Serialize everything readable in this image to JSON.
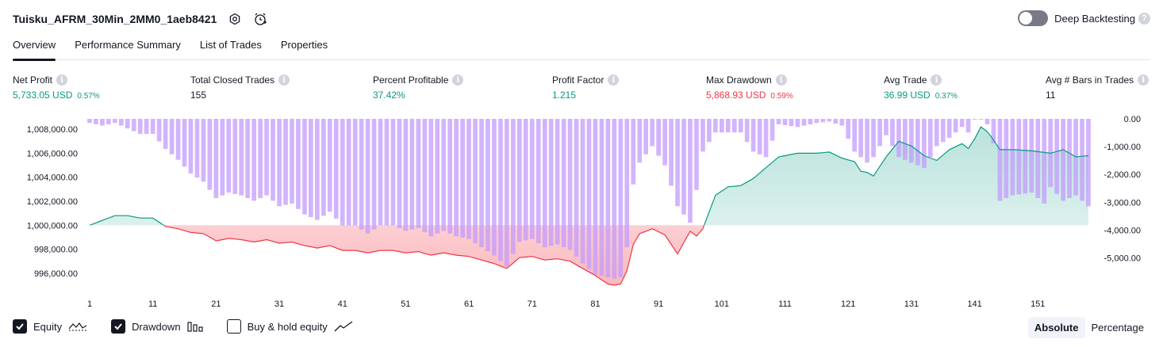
{
  "header": {
    "title": "Tuisku_AFRM_30Min_2MM0_1aeb8421",
    "settings_icon": "gear-icon",
    "alert_icon": "alarm-clock-icon"
  },
  "deep_backtesting": {
    "label": "Deep Backtesting",
    "enabled": false,
    "help": "?"
  },
  "tabs": [
    {
      "label": "Overview",
      "active": true
    },
    {
      "label": "Performance Summary"
    },
    {
      "label": "List of Trades"
    },
    {
      "label": "Properties"
    }
  ],
  "info_glyph": "i",
  "metrics": [
    {
      "label": "Net Profit",
      "value": "5,733.05 USD",
      "pct": "0.57%",
      "tone": "pos"
    },
    {
      "label": "Total Closed Trades",
      "value": "155",
      "pct": "",
      "tone": "neu"
    },
    {
      "label": "Percent Profitable",
      "value": "37.42%",
      "pct": "",
      "tone": "pos"
    },
    {
      "label": "Profit Factor",
      "value": "1.215",
      "pct": "",
      "tone": "pos"
    },
    {
      "label": "Max Drawdown",
      "value": "5,868.93 USD",
      "pct": "0.59%",
      "tone": "neg"
    },
    {
      "label": "Avg Trade",
      "value": "36.99 USD",
      "pct": "0.37%",
      "tone": "pos"
    },
    {
      "label": "Avg # Bars in Trades",
      "value": "11",
      "pct": "",
      "tone": "neu"
    }
  ],
  "chart_data": {
    "type": "area",
    "equity_axis": {
      "ticks": [
        "1,008,000.00",
        "1,006,000.00",
        "1,004,000.00",
        "1,002,000.00",
        "1,000,000.00",
        "998,000.00",
        "996,000.00"
      ],
      "ylim": [
        995000,
        1009000
      ],
      "baseline": 1000000
    },
    "drawdown_axis": {
      "ticks": [
        "0.00",
        "-1,000.00",
        "-2,000.00",
        "-3,000.00",
        "-4,000.00",
        "-5,000.00"
      ],
      "ylim": [
        -5800,
        0
      ]
    },
    "x_ticks": [
      "1",
      "11",
      "21",
      "31",
      "41",
      "51",
      "61",
      "71",
      "81",
      "91",
      "101",
      "111",
      "121",
      "131",
      "141",
      "151"
    ],
    "x": {
      "first": 1,
      "last": 159
    },
    "colors": {
      "equity_up": "#089981",
      "equity_down": "#f23645",
      "drawdown_bar": "#c39bfd",
      "buy_hold": "#787b86"
    },
    "equity_anchors": [
      [
        1,
        1000000
      ],
      [
        3,
        1000400
      ],
      [
        5,
        1000800
      ],
      [
        7,
        1000800
      ],
      [
        9,
        1000600
      ],
      [
        11,
        1000600
      ],
      [
        13,
        999900
      ],
      [
        15,
        999700
      ],
      [
        17,
        999400
      ],
      [
        19,
        999300
      ],
      [
        21,
        998700
      ],
      [
        23,
        998900
      ],
      [
        25,
        998800
      ],
      [
        27,
        998600
      ],
      [
        29,
        998800
      ],
      [
        31,
        998500
      ],
      [
        33,
        998600
      ],
      [
        35,
        998300
      ],
      [
        37,
        998100
      ],
      [
        39,
        998300
      ],
      [
        41,
        997900
      ],
      [
        43,
        997900
      ],
      [
        45,
        997700
      ],
      [
        47,
        997900
      ],
      [
        49,
        997900
      ],
      [
        51,
        997700
      ],
      [
        53,
        997800
      ],
      [
        55,
        997500
      ],
      [
        57,
        997700
      ],
      [
        59,
        997500
      ],
      [
        61,
        997400
      ],
      [
        63,
        997100
      ],
      [
        65,
        996800
      ],
      [
        67,
        996400
      ],
      [
        69,
        997300
      ],
      [
        71,
        997400
      ],
      [
        73,
        997100
      ],
      [
        75,
        997200
      ],
      [
        77,
        997000
      ],
      [
        79,
        996400
      ],
      [
        81,
        995800
      ],
      [
        83,
        995100
      ],
      [
        84,
        995000
      ],
      [
        85,
        995100
      ],
      [
        86,
        996200
      ],
      [
        87,
        998400
      ],
      [
        88,
        999300
      ],
      [
        90,
        999700
      ],
      [
        92,
        999200
      ],
      [
        94,
        997600
      ],
      [
        96,
        999500
      ],
      [
        97,
        999100
      ],
      [
        98,
        999700
      ],
      [
        100,
        1002500
      ],
      [
        102,
        1003200
      ],
      [
        104,
        1003300
      ],
      [
        106,
        1003900
      ],
      [
        108,
        1004800
      ],
      [
        110,
        1005700
      ],
      [
        113,
        1006000
      ],
      [
        116,
        1006000
      ],
      [
        118,
        1006100
      ],
      [
        120,
        1005600
      ],
      [
        122,
        1005300
      ],
      [
        123,
        1004500
      ],
      [
        124,
        1004400
      ],
      [
        125,
        1004100
      ],
      [
        127,
        1005700
      ],
      [
        129,
        1007000
      ],
      [
        131,
        1006600
      ],
      [
        133,
        1005800
      ],
      [
        135,
        1005400
      ],
      [
        137,
        1006300
      ],
      [
        139,
        1006800
      ],
      [
        140,
        1006400
      ],
      [
        141,
        1007200
      ],
      [
        142,
        1008200
      ],
      [
        143,
        1007800
      ],
      [
        144,
        1007100
      ],
      [
        145,
        1006300
      ],
      [
        147,
        1006300
      ],
      [
        150,
        1006200
      ],
      [
        153,
        1006000
      ],
      [
        155,
        1006300
      ],
      [
        157,
        1005700
      ],
      [
        159,
        1005800
      ]
    ],
    "drawdown_anchors": [
      [
        1,
        -150
      ],
      [
        3,
        -250
      ],
      [
        5,
        -150
      ],
      [
        7,
        -350
      ],
      [
        9,
        -550
      ],
      [
        11,
        -550
      ],
      [
        13,
        -1100
      ],
      [
        15,
        -1500
      ],
      [
        17,
        -2000
      ],
      [
        19,
        -2300
      ],
      [
        21,
        -2900
      ],
      [
        23,
        -2700
      ],
      [
        25,
        -2800
      ],
      [
        27,
        -3000
      ],
      [
        29,
        -2800
      ],
      [
        31,
        -3200
      ],
      [
        33,
        -3100
      ],
      [
        35,
        -3500
      ],
      [
        37,
        -3700
      ],
      [
        39,
        -3400
      ],
      [
        41,
        -3900
      ],
      [
        43,
        -3900
      ],
      [
        45,
        -4200
      ],
      [
        47,
        -3900
      ],
      [
        49,
        -3900
      ],
      [
        51,
        -4100
      ],
      [
        53,
        -4000
      ],
      [
        55,
        -4300
      ],
      [
        57,
        -4100
      ],
      [
        59,
        -4300
      ],
      [
        61,
        -4400
      ],
      [
        63,
        -4700
      ],
      [
        65,
        -5000
      ],
      [
        67,
        -5400
      ],
      [
        69,
        -4500
      ],
      [
        71,
        -4400
      ],
      [
        73,
        -4700
      ],
      [
        75,
        -4600
      ],
      [
        77,
        -4800
      ],
      [
        79,
        -5300
      ],
      [
        81,
        -5700
      ],
      [
        83,
        -5800
      ],
      [
        84,
        -5850
      ],
      [
        85,
        -5800
      ],
      [
        86,
        -4700
      ],
      [
        87,
        -2400
      ],
      [
        88,
        -1600
      ],
      [
        90,
        -1000
      ],
      [
        92,
        -1700
      ],
      [
        94,
        -3200
      ],
      [
        96,
        -3800
      ],
      [
        97,
        -2600
      ],
      [
        98,
        -1200
      ],
      [
        100,
        -500
      ],
      [
        104,
        -500
      ],
      [
        106,
        -1200
      ],
      [
        108,
        -1400
      ],
      [
        110,
        -200
      ],
      [
        113,
        -300
      ],
      [
        116,
        -150
      ],
      [
        118,
        -100
      ],
      [
        120,
        -250
      ],
      [
        122,
        -1200
      ],
      [
        124,
        -1600
      ],
      [
        125,
        -1400
      ],
      [
        127,
        -600
      ],
      [
        129,
        -1400
      ],
      [
        131,
        -1600
      ],
      [
        133,
        -1800
      ],
      [
        135,
        -1000
      ],
      [
        137,
        -700
      ],
      [
        139,
        -300
      ],
      [
        140,
        -500
      ],
      [
        141,
        0
      ],
      [
        142,
        0
      ],
      [
        143,
        -200
      ],
      [
        144,
        -900
      ],
      [
        145,
        -3000
      ],
      [
        147,
        -2800
      ],
      [
        150,
        -2700
      ],
      [
        152,
        -3100
      ],
      [
        153,
        -2500
      ],
      [
        155,
        -3000
      ],
      [
        157,
        -2800
      ],
      [
        159,
        -3200
      ]
    ]
  },
  "legend": [
    {
      "label": "Equity",
      "checked": true,
      "glyph": "equity-icon"
    },
    {
      "label": "Drawdown",
      "checked": true,
      "glyph": "drawdown-icon"
    },
    {
      "label": "Buy & hold equity",
      "checked": false,
      "glyph": "buy-hold-icon"
    }
  ],
  "modes": [
    {
      "label": "Absolute",
      "active": true
    },
    {
      "label": "Percentage",
      "active": false
    }
  ]
}
